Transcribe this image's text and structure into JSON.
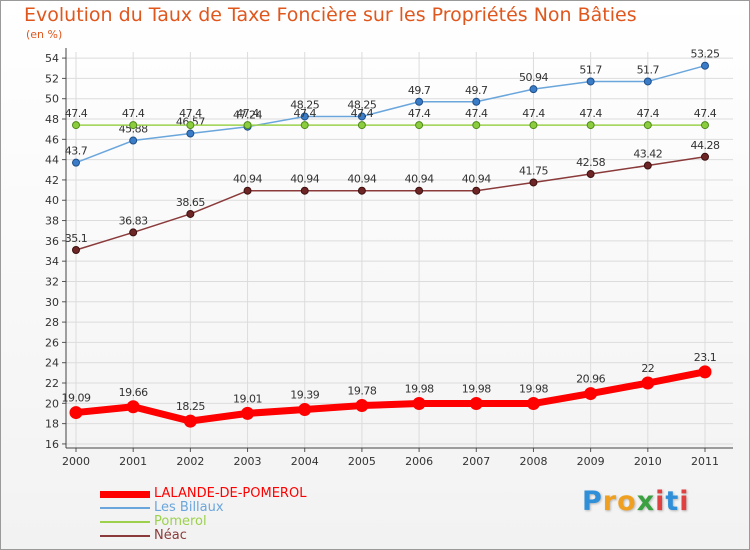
{
  "chart_data": {
    "type": "line",
    "title": "Evolution du Taux de Taxe Foncière sur les Propriétés Non Bâties",
    "subtitle": "(en %)",
    "categories": [
      "2000",
      "2001",
      "2002",
      "2003",
      "2004",
      "2005",
      "2006",
      "2007",
      "2008",
      "2009",
      "2010",
      "2011"
    ],
    "yticks": [
      16,
      18,
      20,
      22,
      24,
      26,
      28,
      30,
      32,
      34,
      36,
      38,
      40,
      42,
      44,
      46,
      48,
      50,
      52,
      54
    ],
    "ylim": [
      15.6,
      54.6
    ],
    "grid": true,
    "series": [
      {
        "name": "LALANDE-DE-POMEROL",
        "color": "#ff0000",
        "values": [
          19.09,
          19.66,
          18.25,
          19.01,
          19.39,
          19.78,
          19.98,
          19.98,
          19.98,
          20.96,
          22,
          23.1
        ]
      },
      {
        "name": "Les Billaux",
        "color": "#6aa6dc",
        "values": [
          43.7,
          45.88,
          46.57,
          47.24,
          48.25,
          48.25,
          49.7,
          49.7,
          50.94,
          51.7,
          51.7,
          53.25
        ]
      },
      {
        "name": "Pomerol",
        "color": "#9dd14d",
        "values": [
          47.4,
          47.4,
          47.4,
          47.4,
          47.4,
          47.4,
          47.4,
          47.4,
          47.4,
          47.4,
          47.4,
          47.4
        ]
      },
      {
        "name": "Néac",
        "color": "#8a3a3a",
        "values": [
          35.1,
          36.83,
          38.65,
          40.94,
          40.94,
          40.94,
          40.94,
          40.94,
          41.75,
          42.58,
          43.42,
          44.28
        ]
      }
    ]
  },
  "branding": {
    "logo_letters": [
      "P",
      "r",
      "o",
      "x",
      "i",
      "t",
      "i"
    ],
    "logo_colors": [
      "#2f8fd8",
      "#f0a020",
      "#f0a020",
      "#3aa040",
      "#e04040",
      "#2f8fd8",
      "#e04040"
    ]
  }
}
